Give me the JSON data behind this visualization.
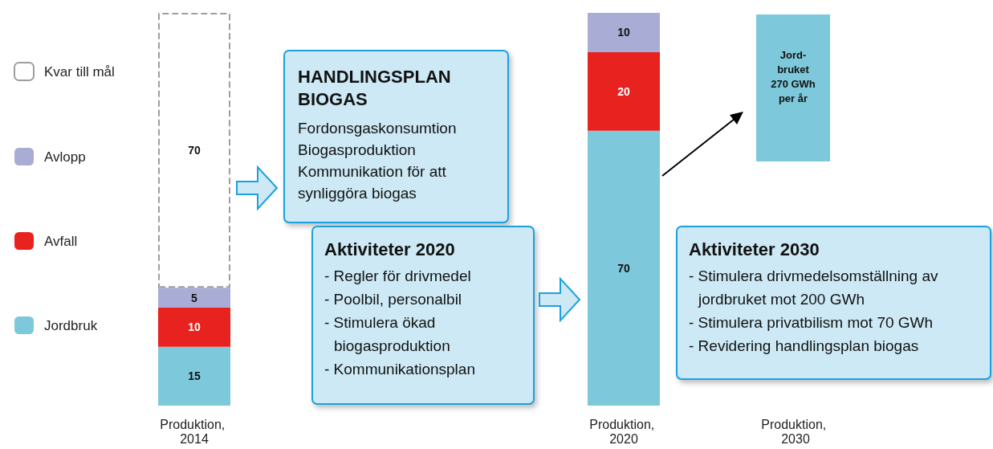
{
  "chart_data": {
    "type": "bar",
    "stacked": true,
    "data_labels": true,
    "legend": "left",
    "tick_labels": "x",
    "ylim": [
      0,
      100
    ],
    "categories": [
      "Produktion, 2014",
      null,
      null,
      null,
      null,
      "Produktion, 2020",
      null,
      "Produktion, 2030"
    ],
    "series": [
      {
        "name": "Jordbruk",
        "color": "#7ec8dc",
        "values": [
          15,
          null,
          null,
          null,
          null,
          70,
          null,
          null
        ]
      },
      {
        "name": "Avfall",
        "color": "#e8221f",
        "values": [
          10,
          null,
          null,
          null,
          null,
          20,
          null,
          null
        ]
      },
      {
        "name": "Avlopp",
        "color": "#a9acd4",
        "values": [
          5,
          null,
          null,
          null,
          null,
          10,
          null,
          null
        ]
      },
      {
        "name": "Kvar till mål",
        "color": "#9e9e9e",
        "line_style": "dashed",
        "values": [
          70,
          null,
          null,
          null,
          null,
          null,
          null,
          null
        ]
      }
    ],
    "annotations": [
      "HANDLINGSPLAN BIOGAS",
      "Fordonsgaskonsumtion\nBiogasproduktion\nKommunikation för att synliggöra biogas",
      "Aktiviteter 2020",
      "- Regler för drivmedel\n- Poolbil, personalbil\n- Stimulera ökad biogasproduktion\n- Kommunikationsplan",
      "Aktiviteter 2030",
      "- Stimulera drivmedelsomställning av jordbruket mot 200 GWh\n- Stimulera privatbilism mot 70 GWh\n- Revidering handlingsplan biogas",
      "Jord-bruket 270 GWh per år"
    ]
  }
}
